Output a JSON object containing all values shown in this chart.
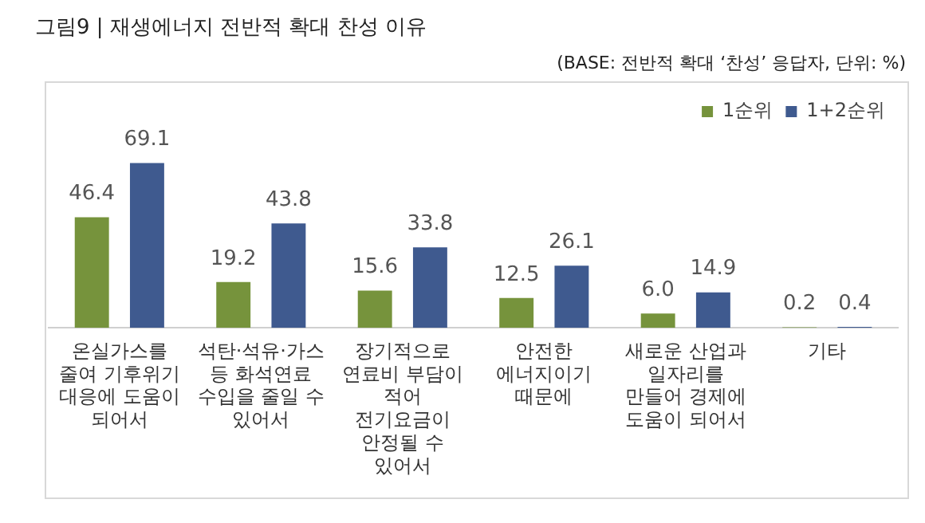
{
  "chart_data": {
    "type": "bar",
    "title": "그림9 | 재생에너지 전반적 확대 찬성 이유",
    "annotations": [
      "(BASE: 전반적 확대 ‘찬성’ 응답자, 단위: %)"
    ],
    "categories": [
      "온실가스를 줄여 기후위기 대응에 도움이 되어서",
      "석탄·석유·가스 등 화석연료 수입을 줄일 수 있어서",
      "장기적으로 연료비 부담이 적어 전기요금이 안정될 수 있어서",
      "안전한 에너지이기 때문에",
      "새로운 산업과 일자리를 만들어 경제에 도움이 되어서",
      "기타"
    ],
    "series": [
      {
        "name": "1순위",
        "color": "#76933c",
        "values": [
          46.4,
          19.2,
          15.6,
          12.5,
          6.0,
          0.2
        ],
        "value_labels": [
          "46.4",
          "19.2",
          "15.6",
          "12.5",
          "6.0",
          "0.2"
        ]
      },
      {
        "name": "1+2순위",
        "color": "#3f5a8f",
        "values": [
          69.1,
          43.8,
          33.8,
          26.1,
          14.9,
          0.4
        ],
        "value_labels": [
          "69.1",
          "43.8",
          "33.8",
          "26.1",
          "14.9",
          "0.4"
        ]
      }
    ],
    "legend": "top right",
    "grid": false,
    "tick_labels": "x"
  }
}
